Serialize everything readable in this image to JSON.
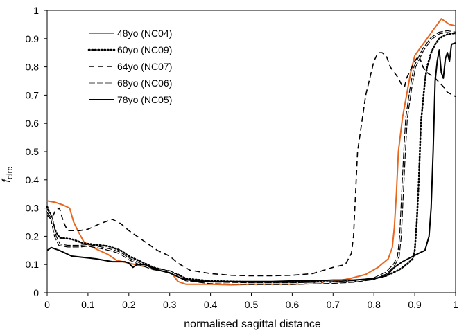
{
  "chart_data": {
    "type": "line",
    "xlabel": "normalised sagittal distance",
    "ylabel": "f",
    "ylabel_subscript": "circ",
    "xlim": [
      0,
      1
    ],
    "ylim": [
      0,
      1
    ],
    "x_ticks": [
      "0",
      "0.1",
      "0.2",
      "0.3",
      "0.4",
      "0.5",
      "0.6",
      "0.7",
      "0.8",
      "0.9",
      "1"
    ],
    "y_ticks": [
      "0",
      "0.1",
      "0.2",
      "0.3",
      "0.4",
      "0.5",
      "0.6",
      "0.7",
      "0.8",
      "0.9",
      "1"
    ],
    "grid": false,
    "legend_position": "top-left",
    "series": [
      {
        "name": "48yo (NC04)",
        "color": "#e8661e",
        "style": "solid",
        "points": [
          [
            0,
            0.325
          ],
          [
            0.02,
            0.32
          ],
          [
            0.04,
            0.31
          ],
          [
            0.055,
            0.3
          ],
          [
            0.065,
            0.25
          ],
          [
            0.075,
            0.22
          ],
          [
            0.09,
            0.18
          ],
          [
            0.12,
            0.155
          ],
          [
            0.15,
            0.135
          ],
          [
            0.17,
            0.115
          ],
          [
            0.2,
            0.105
          ],
          [
            0.23,
            0.095
          ],
          [
            0.27,
            0.085
          ],
          [
            0.3,
            0.075
          ],
          [
            0.31,
            0.06
          ],
          [
            0.32,
            0.04
          ],
          [
            0.34,
            0.03
          ],
          [
            0.4,
            0.03
          ],
          [
            0.45,
            0.028
          ],
          [
            0.5,
            0.03
          ],
          [
            0.55,
            0.03
          ],
          [
            0.6,
            0.03
          ],
          [
            0.65,
            0.032
          ],
          [
            0.7,
            0.04
          ],
          [
            0.74,
            0.05
          ],
          [
            0.78,
            0.065
          ],
          [
            0.81,
            0.09
          ],
          [
            0.835,
            0.12
          ],
          [
            0.845,
            0.16
          ],
          [
            0.85,
            0.23
          ],
          [
            0.855,
            0.35
          ],
          [
            0.86,
            0.5
          ],
          [
            0.87,
            0.62
          ],
          [
            0.88,
            0.7
          ],
          [
            0.89,
            0.78
          ],
          [
            0.9,
            0.84
          ],
          [
            0.915,
            0.87
          ],
          [
            0.93,
            0.9
          ],
          [
            0.94,
            0.92
          ],
          [
            0.955,
            0.95
          ],
          [
            0.965,
            0.97
          ],
          [
            0.975,
            0.96
          ],
          [
            0.985,
            0.95
          ],
          [
            1.0,
            0.945
          ]
        ]
      },
      {
        "name": "60yo (NC09)",
        "color": "#000000",
        "style": "dotted",
        "points": [
          [
            0,
            0.305
          ],
          [
            0.01,
            0.27
          ],
          [
            0.02,
            0.22
          ],
          [
            0.03,
            0.195
          ],
          [
            0.06,
            0.19
          ],
          [
            0.09,
            0.175
          ],
          [
            0.12,
            0.17
          ],
          [
            0.15,
            0.165
          ],
          [
            0.18,
            0.15
          ],
          [
            0.2,
            0.13
          ],
          [
            0.23,
            0.11
          ],
          [
            0.26,
            0.09
          ],
          [
            0.3,
            0.075
          ],
          [
            0.32,
            0.065
          ],
          [
            0.34,
            0.05
          ],
          [
            0.4,
            0.042
          ],
          [
            0.5,
            0.038
          ],
          [
            0.6,
            0.038
          ],
          [
            0.65,
            0.038
          ],
          [
            0.7,
            0.038
          ],
          [
            0.75,
            0.04
          ],
          [
            0.8,
            0.05
          ],
          [
            0.83,
            0.06
          ],
          [
            0.86,
            0.08
          ],
          [
            0.88,
            0.1
          ],
          [
            0.895,
            0.12
          ],
          [
            0.9,
            0.15
          ],
          [
            0.905,
            0.25
          ],
          [
            0.91,
            0.4
          ],
          [
            0.915,
            0.6
          ],
          [
            0.925,
            0.75
          ],
          [
            0.93,
            0.8
          ],
          [
            0.94,
            0.85
          ],
          [
            0.95,
            0.88
          ],
          [
            0.96,
            0.9
          ],
          [
            0.97,
            0.91
          ],
          [
            0.98,
            0.915
          ],
          [
            1.0,
            0.92
          ]
        ]
      },
      {
        "name": "64yo (NC07)",
        "color": "#000000",
        "style": "dashed",
        "points": [
          [
            0,
            0.275
          ],
          [
            0.01,
            0.26
          ],
          [
            0.02,
            0.29
          ],
          [
            0.03,
            0.3
          ],
          [
            0.04,
            0.25
          ],
          [
            0.05,
            0.22
          ],
          [
            0.08,
            0.22
          ],
          [
            0.1,
            0.225
          ],
          [
            0.13,
            0.245
          ],
          [
            0.16,
            0.26
          ],
          [
            0.18,
            0.245
          ],
          [
            0.2,
            0.22
          ],
          [
            0.23,
            0.19
          ],
          [
            0.27,
            0.15
          ],
          [
            0.3,
            0.13
          ],
          [
            0.32,
            0.105
          ],
          [
            0.35,
            0.08
          ],
          [
            0.4,
            0.068
          ],
          [
            0.45,
            0.062
          ],
          [
            0.5,
            0.06
          ],
          [
            0.55,
            0.06
          ],
          [
            0.6,
            0.062
          ],
          [
            0.65,
            0.068
          ],
          [
            0.7,
            0.09
          ],
          [
            0.73,
            0.1
          ],
          [
            0.745,
            0.14
          ],
          [
            0.75,
            0.2
          ],
          [
            0.76,
            0.5
          ],
          [
            0.78,
            0.7
          ],
          [
            0.8,
            0.82
          ],
          [
            0.81,
            0.85
          ],
          [
            0.82,
            0.85
          ],
          [
            0.83,
            0.84
          ],
          [
            0.84,
            0.8
          ],
          [
            0.86,
            0.76
          ],
          [
            0.87,
            0.73
          ],
          [
            0.875,
            0.73
          ],
          [
            0.88,
            0.76
          ],
          [
            0.9,
            0.82
          ],
          [
            0.91,
            0.84
          ],
          [
            0.92,
            0.8
          ],
          [
            0.93,
            0.78
          ],
          [
            0.95,
            0.76
          ],
          [
            0.97,
            0.73
          ],
          [
            0.98,
            0.71
          ],
          [
            1.0,
            0.695
          ]
        ]
      },
      {
        "name": "68yo (NC06)",
        "color": "#000000",
        "style": "double",
        "points": [
          [
            0,
            0.29
          ],
          [
            0.01,
            0.27
          ],
          [
            0.02,
            0.2
          ],
          [
            0.03,
            0.17
          ],
          [
            0.05,
            0.165
          ],
          [
            0.08,
            0.165
          ],
          [
            0.1,
            0.168
          ],
          [
            0.13,
            0.16
          ],
          [
            0.16,
            0.15
          ],
          [
            0.18,
            0.14
          ],
          [
            0.2,
            0.12
          ],
          [
            0.23,
            0.1
          ],
          [
            0.26,
            0.085
          ],
          [
            0.3,
            0.075
          ],
          [
            0.32,
            0.06
          ],
          [
            0.34,
            0.045
          ],
          [
            0.4,
            0.035
          ],
          [
            0.5,
            0.032
          ],
          [
            0.6,
            0.032
          ],
          [
            0.65,
            0.034
          ],
          [
            0.7,
            0.036
          ],
          [
            0.75,
            0.04
          ],
          [
            0.8,
            0.05
          ],
          [
            0.83,
            0.07
          ],
          [
            0.85,
            0.1
          ],
          [
            0.86,
            0.13
          ],
          [
            0.865,
            0.2
          ],
          [
            0.87,
            0.35
          ],
          [
            0.875,
            0.5
          ],
          [
            0.88,
            0.62
          ],
          [
            0.89,
            0.72
          ],
          [
            0.9,
            0.8
          ],
          [
            0.92,
            0.86
          ],
          [
            0.94,
            0.9
          ],
          [
            0.96,
            0.92
          ],
          [
            0.98,
            0.925
          ],
          [
            1.0,
            0.92
          ]
        ]
      },
      {
        "name": "78yo (NC05)",
        "color": "#000000",
        "style": "solid",
        "points": [
          [
            0,
            0.15
          ],
          [
            0.01,
            0.16
          ],
          [
            0.03,
            0.15
          ],
          [
            0.06,
            0.13
          ],
          [
            0.09,
            0.125
          ],
          [
            0.12,
            0.12
          ],
          [
            0.14,
            0.115
          ],
          [
            0.16,
            0.11
          ],
          [
            0.19,
            0.11
          ],
          [
            0.2,
            0.105
          ],
          [
            0.21,
            0.09
          ],
          [
            0.22,
            0.1
          ],
          [
            0.24,
            0.1
          ],
          [
            0.26,
            0.085
          ],
          [
            0.3,
            0.07
          ],
          [
            0.33,
            0.05
          ],
          [
            0.36,
            0.042
          ],
          [
            0.4,
            0.04
          ],
          [
            0.5,
            0.04
          ],
          [
            0.55,
            0.04
          ],
          [
            0.6,
            0.042
          ],
          [
            0.65,
            0.042
          ],
          [
            0.7,
            0.045
          ],
          [
            0.75,
            0.045
          ],
          [
            0.8,
            0.05
          ],
          [
            0.83,
            0.06
          ],
          [
            0.85,
            0.09
          ],
          [
            0.87,
            0.11
          ],
          [
            0.89,
            0.125
          ],
          [
            0.91,
            0.14
          ],
          [
            0.925,
            0.15
          ],
          [
            0.935,
            0.2
          ],
          [
            0.94,
            0.3
          ],
          [
            0.945,
            0.5
          ],
          [
            0.95,
            0.75
          ],
          [
            0.955,
            0.82
          ],
          [
            0.96,
            0.86
          ],
          [
            0.965,
            0.78
          ],
          [
            0.97,
            0.76
          ],
          [
            0.975,
            0.83
          ],
          [
            0.98,
            0.85
          ],
          [
            0.985,
            0.82
          ],
          [
            0.99,
            0.88
          ],
          [
            1.0,
            0.885
          ]
        ]
      }
    ]
  }
}
